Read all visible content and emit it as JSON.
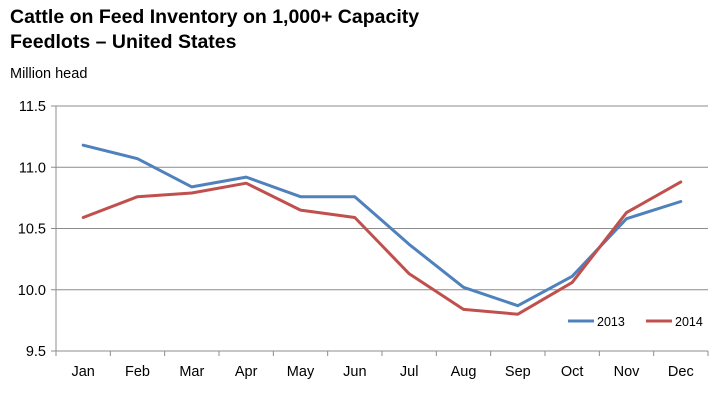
{
  "chart_data": {
    "type": "line",
    "title_line1": "Cattle on Feed Inventory on 1,000+ Capacity",
    "title_line2": "Feedlots – United States",
    "ylabel": "Million head",
    "xlabel": "",
    "categories": [
      "Jan",
      "Feb",
      "Mar",
      "Apr",
      "May",
      "Jun",
      "Jul",
      "Aug",
      "Sep",
      "Oct",
      "Nov",
      "Dec"
    ],
    "ylim": [
      9.5,
      11.5
    ],
    "yticks": [
      "9.5",
      "10.0",
      "10.5",
      "11.0",
      "11.5"
    ],
    "grid": true,
    "legend_position": "bottom-right",
    "series": [
      {
        "name": "2013",
        "color": "#4F81BD",
        "values": [
          11.18,
          11.07,
          10.84,
          10.92,
          10.76,
          10.76,
          10.37,
          10.02,
          9.87,
          10.11,
          10.58,
          10.72
        ]
      },
      {
        "name": "2014",
        "color": "#C0504D",
        "values": [
          10.59,
          10.76,
          10.79,
          10.87,
          10.65,
          10.59,
          10.13,
          9.84,
          9.8,
          10.06,
          10.63,
          10.88
        ]
      }
    ]
  }
}
